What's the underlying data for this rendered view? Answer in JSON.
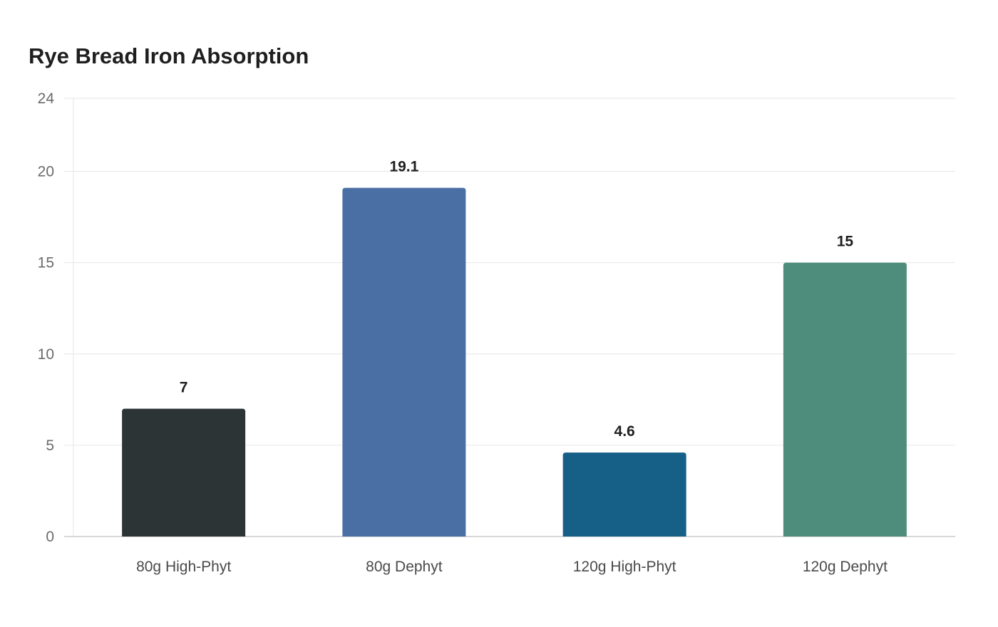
{
  "chart_data": {
    "type": "bar",
    "title": "Rye Bread Iron Absorption",
    "xlabel": "",
    "ylabel": "",
    "categories": [
      "80g High-Phyt",
      "80g Dephyt",
      "120g High-Phyt",
      "120g Dephyt"
    ],
    "values": [
      7,
      19.1,
      4.6,
      15
    ],
    "value_labels": [
      "7",
      "19.1",
      "4.6",
      "15"
    ],
    "colors": [
      "#2d3436",
      "#4a6fa5",
      "#166088",
      "#4e8d7c"
    ],
    "ylim": [
      0,
      24
    ],
    "yticks": [
      0,
      5,
      10,
      15,
      20,
      24
    ],
    "grid": true,
    "legend": "none"
  }
}
